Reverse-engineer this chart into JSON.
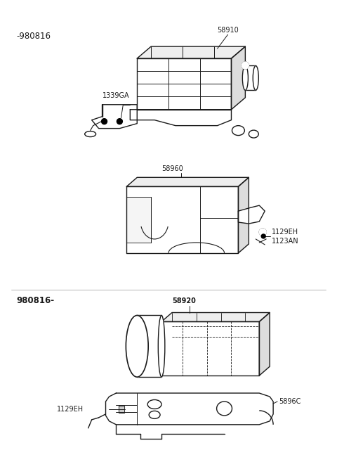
{
  "background_color": "#ffffff",
  "fig_width": 4.8,
  "fig_height": 6.57,
  "dpi": 100,
  "labels": {
    "top_date": "-980816",
    "bottom_date": "980816-",
    "part1": "58910",
    "part2": "1339GA",
    "part3": "58960",
    "part4_1": "1129EH",
    "part4_2": "1123AN",
    "part5": "58920",
    "part6": "5896C",
    "part7": "1129EH"
  },
  "line_color": "#1a1a1a",
  "text_color": "#1a1a1a",
  "font_size": 7.0,
  "font_size_date": 8.5
}
